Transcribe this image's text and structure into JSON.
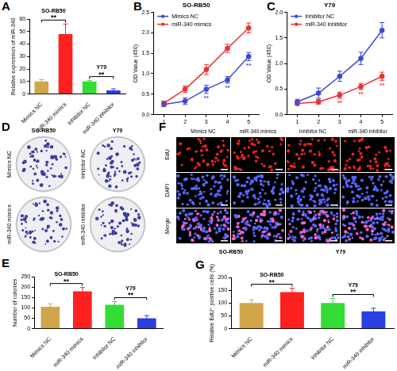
{
  "chart_data": [
    {
      "panel": "A",
      "type": "bar",
      "categories": [
        "Mimics NC",
        "miR-340 mimics",
        "Inhibitor NC",
        "miR-340 inhibitor"
      ],
      "values": [
        10,
        48,
        10,
        3
      ],
      "errors": [
        1.5,
        8,
        0.8,
        1.2
      ],
      "colors": [
        "#d2a54a",
        "#ff2020",
        "#33dd33",
        "#2a3fe0"
      ],
      "y_label": "Relative expression of miR-340",
      "ylim": [
        0,
        60
      ],
      "yticks": [
        0,
        10,
        20,
        30,
        40,
        50,
        60
      ],
      "grid": false,
      "groups": [
        {
          "label": "SO-RB50",
          "categories": [
            "Mimics NC",
            "miR-340 mimics"
          ],
          "significance": "**"
        },
        {
          "label": "Y79",
          "categories": [
            "Inhibitor NC",
            "miR-340 inhibitor"
          ],
          "significance": "**"
        }
      ]
    },
    {
      "panel": "B",
      "type": "line",
      "title": "SO-RB50",
      "x": [
        1,
        2,
        3,
        4,
        5
      ],
      "xlim": [
        0.5,
        5.5
      ],
      "xticks": [
        1,
        2,
        3,
        4,
        5
      ],
      "ylim": [
        0,
        2.5
      ],
      "yticks": [
        {
          "value": 0,
          "label": "0.0"
        },
        0.5,
        {
          "value": 1,
          "label": "1.0"
        },
        1.5,
        {
          "value": 2,
          "label": "2.0"
        },
        2.5
      ],
      "y_label": "OD Value (450)",
      "grid": false,
      "legend": "upper left",
      "series": [
        {
          "name": "Mimics NC",
          "color": "#3b48d8",
          "marker": "circle",
          "line_style": "solid",
          "values": [
            0.25,
            0.33,
            0.62,
            0.85,
            1.42
          ],
          "errors": [
            0.05,
            0.08,
            0.1,
            0.08,
            0.1
          ],
          "significance": [
            null,
            null,
            "**",
            "**",
            "**"
          ]
        },
        {
          "name": "miR-340 mimics",
          "color": "#ee3030",
          "marker": "circle",
          "line_style": "solid",
          "values": [
            0.28,
            0.62,
            1.1,
            1.62,
            2.12
          ],
          "errors": [
            0.05,
            0.08,
            0.12,
            0.1,
            0.12
          ]
        }
      ]
    },
    {
      "panel": "C",
      "type": "line",
      "title": "Y79",
      "x": [
        1,
        2,
        3,
        4,
        5
      ],
      "xlim": [
        0.5,
        5.5
      ],
      "xticks": [
        1,
        2,
        3,
        4,
        5
      ],
      "ylim": [
        0,
        2.0
      ],
      "yticks": [
        {
          "value": 0,
          "label": "0.0"
        },
        0.5,
        {
          "value": 1,
          "label": "1.0"
        },
        1.5,
        {
          "value": 2,
          "label": "2.0"
        }
      ],
      "y_label": "OD Value (450)",
      "grid": false,
      "legend": "upper left",
      "series": [
        {
          "name": "Inhibitor NC",
          "color": "#3b48d8",
          "marker": "circle",
          "line_style": "solid",
          "values": [
            0.25,
            0.42,
            0.75,
            1.1,
            1.65
          ],
          "errors": [
            0.05,
            0.1,
            0.1,
            0.12,
            0.15
          ]
        },
        {
          "name": "miR-340 inhibitor",
          "color": "#ee3030",
          "marker": "circle",
          "line_style": "solid",
          "values": [
            0.22,
            0.25,
            0.38,
            0.55,
            0.75
          ],
          "errors": [
            0.04,
            0.05,
            0.06,
            0.06,
            0.08
          ],
          "significance": [
            null,
            null,
            "**",
            "**",
            "**"
          ]
        }
      ]
    },
    {
      "panel": "E",
      "type": "bar",
      "categories": [
        "Mimics NC",
        "miR-340 mimics",
        "Inhibitor NC",
        "miR-340 inhibitor"
      ],
      "values": [
        105,
        180,
        115,
        50
      ],
      "errors": [
        15,
        18,
        15,
        13
      ],
      "colors": [
        "#d2a54a",
        "#ff2020",
        "#33dd33",
        "#2a3fe0"
      ],
      "y_label": "Number of colonies",
      "ylim": [
        0,
        250
      ],
      "yticks": [
        0,
        50,
        100,
        150,
        200,
        250
      ],
      "grid": false,
      "groups": [
        {
          "label": "SO-RB50",
          "categories": [
            "Mimics NC",
            "miR-340 mimics"
          ],
          "significance": "**"
        },
        {
          "label": "Y79",
          "categories": [
            "Inhibitor NC",
            "miR-340 inhibitor"
          ],
          "significance": "**"
        }
      ]
    },
    {
      "panel": "G",
      "type": "bar",
      "categories": [
        "Mimics NC",
        "miR-340 mimics",
        "Inhibitor NC",
        "miR-340 inhibitor"
      ],
      "values": [
        100,
        143,
        100,
        68
      ],
      "errors": [
        13,
        15,
        18,
        12
      ],
      "colors": [
        "#d2a54a",
        "#ff2020",
        "#33dd33",
        "#2a3fe0"
      ],
      "y_label": "Relative EdU⁺ positive cells (%)",
      "ylim": [
        0,
        200
      ],
      "yticks": [
        0,
        50,
        100,
        150,
        200
      ],
      "grid": false,
      "groups": [
        {
          "label": "SO-RB50",
          "categories": [
            "Mimics NC",
            "miR-340 mimics"
          ],
          "significance": "**"
        },
        {
          "label": "Y79",
          "categories": [
            "Inhibitor NC",
            "miR-340 inhibitor"
          ],
          "significance": "**"
        }
      ]
    }
  ],
  "colony_images": {
    "panel": "D",
    "columns": [
      {
        "header": "SO-RB50",
        "rows": [
          "Mimics NC",
          "miR-340 mimics"
        ]
      },
      {
        "header": "Y79",
        "rows": [
          "Inhibitor NC",
          "miR-340 inhibitor"
        ]
      }
    ]
  },
  "edu_images": {
    "panel": "F",
    "columns": [
      "Mimics NC",
      "miR-340 mimics",
      "Inhibitor NC",
      "miR-340 inhibitor"
    ],
    "rows": [
      "EdU",
      "DAPI",
      "Merge"
    ],
    "groups": [
      {
        "label": "SO-RB50",
        "columns": [
          "Mimics NC",
          "miR-340 mimics"
        ]
      },
      {
        "label": "Y79",
        "columns": [
          "Inhibitor NC",
          "miR-340 inhibitor"
        ]
      }
    ]
  }
}
